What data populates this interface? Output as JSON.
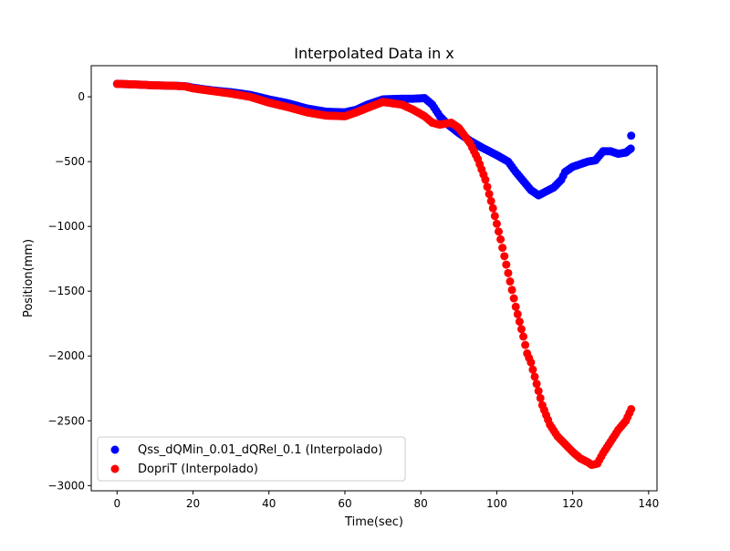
{
  "chart_data": {
    "type": "scatter",
    "title": "Interpolated Data in x",
    "xlabel": "Time(sec)",
    "ylabel": "Position(mm)",
    "xlim": [
      -6.8,
      142.2
    ],
    "ylim": [
      -3040,
      240
    ],
    "x_ticks": [
      0,
      20,
      40,
      60,
      80,
      100,
      120,
      140
    ],
    "x_tick_labels": [
      "0",
      "20",
      "40",
      "60",
      "80",
      "100",
      "120",
      "140"
    ],
    "y_ticks": [
      0,
      -500,
      -1000,
      -1500,
      -2000,
      -2500,
      -3000
    ],
    "y_tick_labels": [
      "0",
      "−500",
      "−1000",
      "−1500",
      "−2000",
      "−2500",
      "−3000"
    ],
    "grid": false,
    "legend_position": "lower-left",
    "series": [
      {
        "name": "Qss_dQMin_0.01_dQRel_0.1 (Interpolado)",
        "color": "#0000ff",
        "points": [
          [
            0,
            100
          ],
          [
            5,
            95
          ],
          [
            10,
            88
          ],
          [
            15,
            85
          ],
          [
            18,
            82
          ],
          [
            20,
            70
          ],
          [
            25,
            50
          ],
          [
            30,
            35
          ],
          [
            35,
            15
          ],
          [
            40,
            -20
          ],
          [
            45,
            -50
          ],
          [
            50,
            -90
          ],
          [
            55,
            -115
          ],
          [
            60,
            -120
          ],
          [
            63,
            -100
          ],
          [
            66,
            -60
          ],
          [
            70,
            -20
          ],
          [
            75,
            -15
          ],
          [
            78,
            -15
          ],
          [
            81,
            -10
          ],
          [
            83,
            -60
          ],
          [
            85,
            -150
          ],
          [
            87,
            -210
          ],
          [
            90,
            -280
          ],
          [
            93,
            -340
          ],
          [
            96,
            -390
          ],
          [
            100,
            -450
          ],
          [
            103,
            -500
          ],
          [
            105,
            -580
          ],
          [
            107,
            -650
          ],
          [
            109,
            -720
          ],
          [
            111,
            -760
          ],
          [
            113,
            -730
          ],
          [
            115,
            -700
          ],
          [
            117,
            -640
          ],
          [
            118,
            -580
          ],
          [
            120,
            -540
          ],
          [
            122,
            -520
          ],
          [
            124,
            -500
          ],
          [
            126,
            -490
          ],
          [
            128,
            -420
          ],
          [
            130,
            -420
          ],
          [
            132,
            -440
          ],
          [
            134,
            -430
          ],
          [
            135.3,
            -400
          ],
          [
            135.4,
            -300
          ]
        ]
      },
      {
        "name": "DopriT (Interpolado)",
        "color": "#ff0000",
        "points": [
          [
            0,
            100
          ],
          [
            5,
            95
          ],
          [
            10,
            88
          ],
          [
            15,
            85
          ],
          [
            18,
            80
          ],
          [
            20,
            65
          ],
          [
            25,
            45
          ],
          [
            30,
            25
          ],
          [
            35,
            0
          ],
          [
            40,
            -45
          ],
          [
            45,
            -80
          ],
          [
            50,
            -120
          ],
          [
            55,
            -145
          ],
          [
            60,
            -150
          ],
          [
            63,
            -120
          ],
          [
            66,
            -85
          ],
          [
            70,
            -40
          ],
          [
            75,
            -60
          ],
          [
            78,
            -100
          ],
          [
            81,
            -150
          ],
          [
            83,
            -200
          ],
          [
            85,
            -215
          ],
          [
            88,
            -200
          ],
          [
            90,
            -240
          ],
          [
            93,
            -360
          ],
          [
            95,
            -480
          ],
          [
            97,
            -640
          ],
          [
            99,
            -860
          ],
          [
            101,
            -1100
          ],
          [
            103,
            -1360
          ],
          [
            105,
            -1620
          ],
          [
            107,
            -1850
          ],
          [
            108,
            -1980
          ],
          [
            109,
            -2050
          ],
          [
            110,
            -2160
          ],
          [
            112,
            -2380
          ],
          [
            114,
            -2530
          ],
          [
            116,
            -2620
          ],
          [
            118,
            -2680
          ],
          [
            120,
            -2740
          ],
          [
            122,
            -2790
          ],
          [
            124,
            -2820
          ],
          [
            125,
            -2840
          ],
          [
            126.5,
            -2830
          ],
          [
            128,
            -2750
          ],
          [
            130,
            -2660
          ],
          [
            132,
            -2570
          ],
          [
            134,
            -2500
          ],
          [
            135.4,
            -2410
          ]
        ]
      }
    ]
  }
}
